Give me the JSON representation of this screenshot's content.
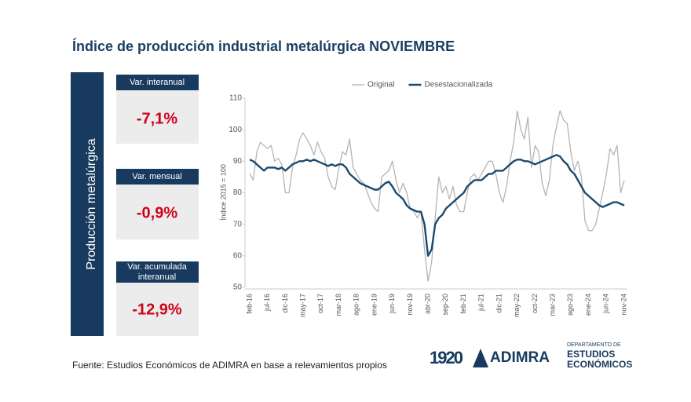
{
  "header": {
    "title": "Índice de producción industrial metalúrgica NOVIEMBRE"
  },
  "sidebar": {
    "label": "Producción metalúrgica",
    "cards": [
      {
        "label": "Var. interanual",
        "value": "-7,1%"
      },
      {
        "label": "Var. mensual",
        "value": "-0,9%"
      },
      {
        "label_lines": [
          "Var. acumulada",
          "interanual"
        ],
        "value": "-12,9%"
      }
    ]
  },
  "chart_data": {
    "type": "line",
    "ylabel": "Índice 2015 = 100",
    "legend": "top",
    "ylim": [
      50,
      110
    ],
    "yticks": [
      50,
      60,
      70,
      80,
      90,
      100,
      110
    ],
    "categories": [
      "feb-16",
      null,
      null,
      null,
      null,
      "jul-16",
      null,
      null,
      null,
      null,
      "dic-16",
      null,
      null,
      null,
      null,
      "may-17",
      null,
      null,
      null,
      null,
      "oct-17",
      null,
      null,
      null,
      null,
      "mar-18",
      null,
      null,
      null,
      null,
      "ago-18",
      null,
      null,
      null,
      null,
      "ene-19",
      null,
      null,
      null,
      null,
      "jun-19",
      null,
      null,
      null,
      null,
      "nov-19",
      null,
      null,
      null,
      null,
      "abr-20",
      null,
      null,
      null,
      null,
      "sep-20",
      null,
      null,
      null,
      null,
      "feb-21",
      null,
      null,
      null,
      null,
      "jul-21",
      null,
      null,
      null,
      null,
      "dic-21",
      null,
      null,
      null,
      null,
      "may-22",
      null,
      null,
      null,
      null,
      "oct-22",
      null,
      null,
      null,
      null,
      "mar-23",
      null,
      null,
      null,
      null,
      "ago-23",
      null,
      null,
      null,
      null,
      "ene-24",
      null,
      null,
      null,
      null,
      "jun-24",
      null,
      null,
      null,
      null,
      "nov-24"
    ],
    "series": [
      {
        "name": "Original",
        "color": "#b4b4b4",
        "width": 1.3,
        "values": [
          86,
          84,
          93,
          96,
          95,
          94,
          95,
          90,
          91,
          89,
          80,
          80,
          88,
          92,
          97,
          99,
          97,
          95,
          92,
          96,
          93,
          91,
          85,
          82,
          81,
          88,
          93,
          92,
          97,
          88,
          86,
          84,
          83,
          80,
          77,
          75,
          74,
          85,
          86,
          87,
          90,
          84,
          80,
          83,
          80,
          75,
          74,
          72,
          74,
          62,
          52,
          58,
          72,
          85,
          80,
          82,
          78,
          82,
          76,
          74,
          74,
          80,
          85,
          86,
          84,
          86,
          88,
          90,
          90,
          86,
          80,
          77,
          82,
          90,
          96,
          106,
          100,
          97,
          104,
          88,
          95,
          93,
          83,
          79,
          84,
          95,
          101,
          106,
          103,
          102,
          93,
          87,
          90,
          85,
          71,
          68,
          68,
          70,
          75,
          80,
          86,
          94,
          92,
          95,
          80,
          84
        ]
      },
      {
        "name": "Desestacionalizada",
        "color": "#1b4a6e",
        "width": 2.4,
        "values": [
          90.5,
          90,
          89,
          88,
          87,
          88,
          88,
          88,
          87.5,
          88,
          87,
          88,
          89,
          89.5,
          90,
          90,
          90.5,
          90,
          90.5,
          90,
          89.5,
          89,
          88.5,
          89,
          88.5,
          89,
          89,
          88,
          86,
          85,
          84,
          83,
          82.5,
          82,
          81.5,
          81,
          81,
          82,
          83,
          83.5,
          82,
          80,
          79,
          78,
          76,
          75,
          74.5,
          74,
          74,
          70,
          60,
          62,
          70,
          72,
          73,
          75,
          76,
          77,
          78,
          79,
          80,
          82,
          83,
          84,
          84,
          84,
          85,
          86,
          86,
          87,
          87,
          87,
          88,
          89,
          90,
          90.5,
          90.5,
          90,
          90,
          89.5,
          89,
          89.5,
          90,
          90.5,
          91,
          91.5,
          92,
          91.5,
          90,
          89,
          87,
          86,
          84,
          82,
          80,
          79,
          78,
          77,
          76,
          75.5,
          76,
          76.5,
          77,
          77,
          76.5,
          76
        ]
      }
    ]
  },
  "footer": {
    "source": "Fuente: Estudios Económicos de ADIMRA en base a relevamientos propios",
    "logo_number": "1920",
    "logo_name": "ADIMRA",
    "dept_lines": [
      "DEPARTAMENTO DE",
      "ESTUDIOS",
      "ECONÓMICOS"
    ]
  }
}
